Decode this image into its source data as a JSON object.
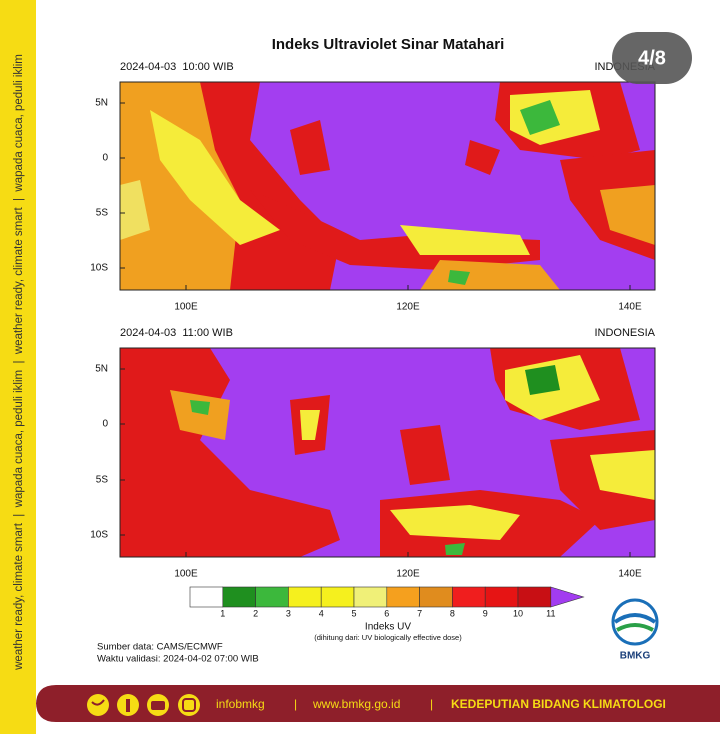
{
  "header": {
    "title": "Indeks Ultraviolet Sinar Matahari",
    "badge": "4/8"
  },
  "panels": [
    {
      "time": "2024-04-03  10:00 WIB",
      "region": "INDONESIA",
      "lat_labels": [
        "5N",
        "0",
        "5S",
        "10S"
      ],
      "lon_labels": [
        "100E",
        "120E",
        "140E"
      ]
    },
    {
      "time": "2024-04-03  11:00 WIB",
      "region": "INDONESIA",
      "lat_labels": [
        "5N",
        "0",
        "5S",
        "10S"
      ],
      "lon_labels": [
        "100E",
        "120E",
        "140E"
      ]
    }
  ],
  "legend": {
    "levels": [
      "1",
      "2",
      "3",
      "4",
      "5",
      "6",
      "7",
      "8",
      "9",
      "10",
      "11"
    ],
    "colors": [
      "#ffffff",
      "#1f8f1f",
      "#3cb83c",
      "#f5f01e",
      "#f5f01e",
      "#f0f078",
      "#f5a01e",
      "#e08c1e",
      "#f01e1e",
      "#e61414",
      "#c80f14",
      "#a23cf0"
    ],
    "title": "Indeks UV",
    "note": "(dihitung dari: UV biologically effective dose)"
  },
  "source": "Sumber data: CAMS/ECMWF",
  "validity": "Waktu validasi: 2024-04-02 07:00 WIB",
  "logo": "BMKG",
  "sidebar": "weather ready, climate smart  |  wapada cuaca, peduli iklim  |  weather ready, climate smart  |  wapada cuaca, peduli iklim",
  "footer": {
    "social": "infobmkg",
    "separators": [
      "|",
      "|"
    ],
    "website": "www.bmkg.go.id",
    "department": "KEDEPUTIAN BIDANG KLIMATOLOGI"
  }
}
